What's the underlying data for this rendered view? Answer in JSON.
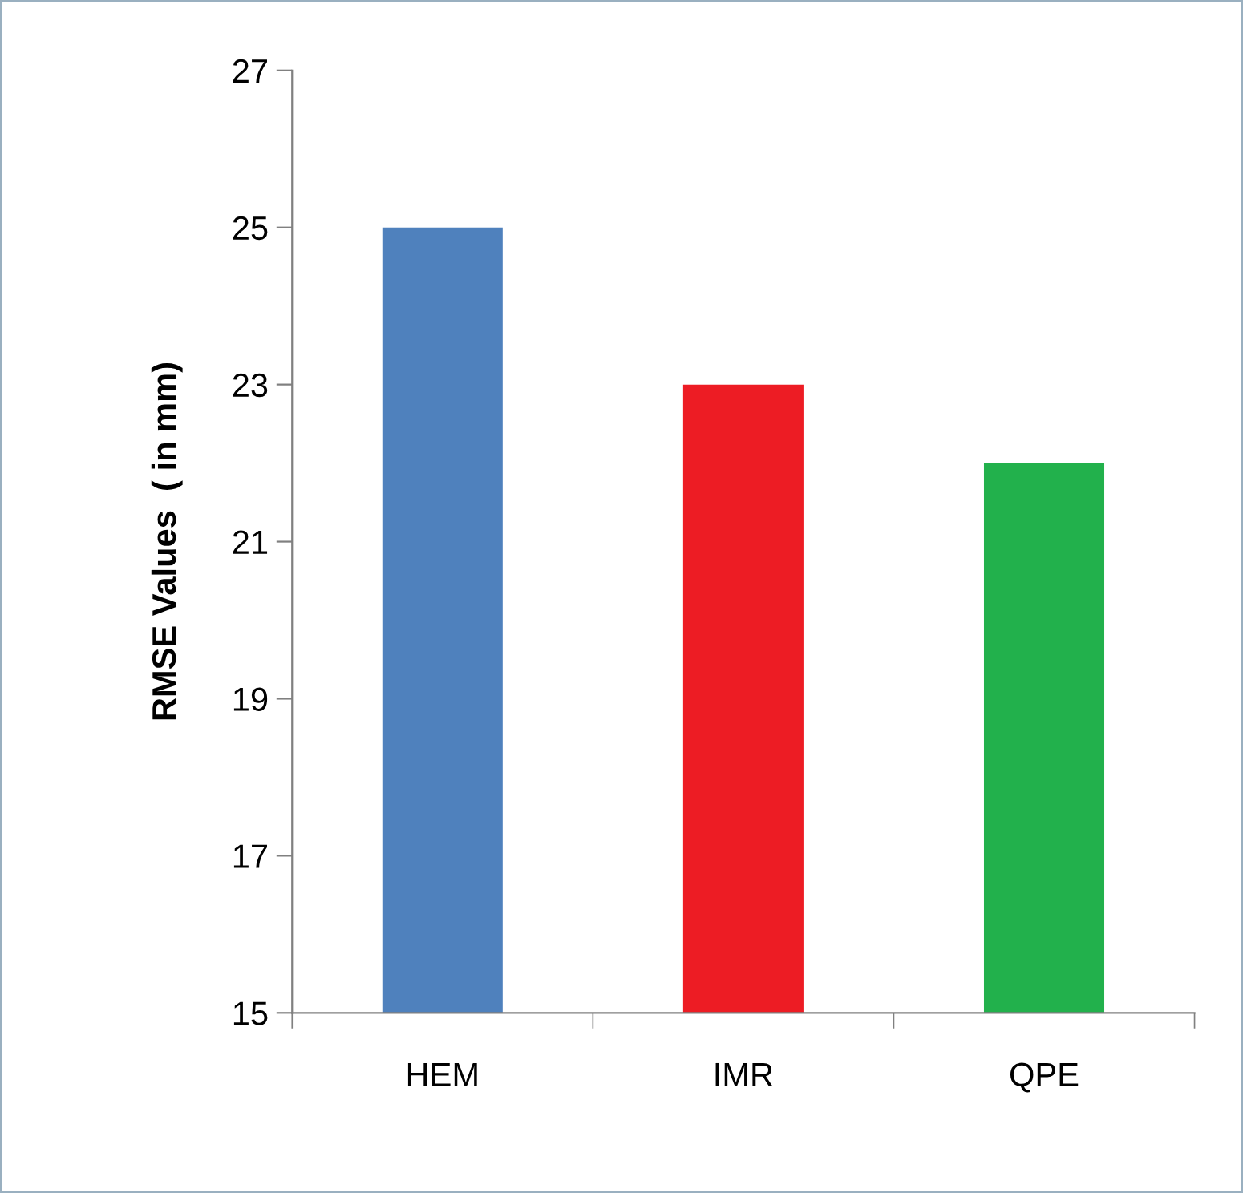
{
  "chart_data": {
    "type": "bar",
    "ylabel": "RMSE Values  ( in mm)",
    "categories": [
      "HEM",
      "IMR",
      "QPE"
    ],
    "values": [
      25,
      23,
      22
    ],
    "colors": [
      "#4f81bd",
      "#ed1c24",
      "#22b14c"
    ],
    "ylim": [
      15,
      27
    ],
    "yticks": [
      15,
      17,
      19,
      21,
      23,
      25,
      27
    ],
    "grid": false,
    "legend": false
  }
}
